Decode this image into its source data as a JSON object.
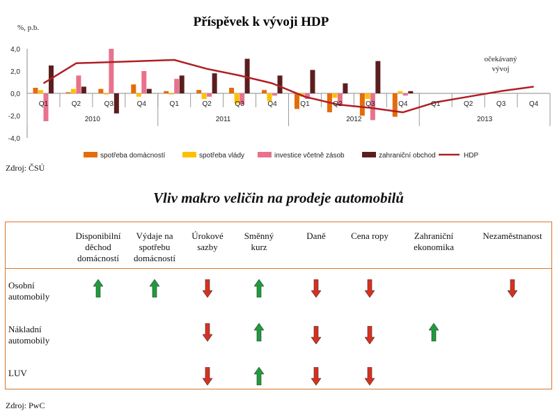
{
  "chart_data": {
    "type": "bar",
    "title": "Příspěvek k vývoji HDP",
    "ylabel": "%, p.b.",
    "ylim": [
      -4,
      4
    ],
    "yticks": [
      "4,0",
      "2,0",
      "0,0",
      "-2,0",
      "-4,0"
    ],
    "categories": [
      "Q1",
      "Q2",
      "Q3",
      "Q4",
      "Q1",
      "Q2",
      "Q3",
      "Q4",
      "Q1",
      "Q2",
      "Q3",
      "Q4",
      "Q1",
      "Q2",
      "Q3",
      "Q4"
    ],
    "years": [
      "2010",
      "2011",
      "2012",
      "2013"
    ],
    "series": [
      {
        "name": "spotřeba domácností",
        "color": "#e46c0a",
        "kind": "bar",
        "values": [
          0.5,
          0.1,
          0.4,
          0.8,
          0.2,
          0.3,
          0.5,
          0.3,
          -1.4,
          -1.7,
          -2.0,
          -2.1,
          null,
          null,
          null,
          null
        ]
      },
      {
        "name": "spotřeba vlády",
        "color": "#ffc000",
        "kind": "bar",
        "values": [
          0.3,
          0.4,
          -0.1,
          -0.3,
          -0.1,
          -0.5,
          -0.9,
          -0.7,
          -0.3,
          -0.4,
          -0.5,
          0.2,
          null,
          null,
          null,
          null
        ]
      },
      {
        "name": "investice včetně zásob",
        "color": "#e8728c",
        "kind": "bar",
        "values": [
          -2.5,
          1.6,
          4.0,
          2.0,
          1.3,
          -0.3,
          -1.0,
          -0.2,
          -0.5,
          -1.0,
          -2.4,
          -0.2,
          null,
          null,
          null,
          null
        ]
      },
      {
        "name": "zahraniční obchod",
        "color": "#5b1e1e",
        "kind": "bar",
        "values": [
          2.5,
          0.6,
          -1.8,
          0.4,
          1.6,
          1.8,
          3.1,
          1.6,
          2.1,
          0.9,
          2.9,
          0.2,
          null,
          null,
          null,
          null
        ]
      },
      {
        "name": "HDP",
        "color": "#b01e24",
        "kind": "line",
        "values": [
          0.9,
          2.7,
          2.8,
          2.9,
          3.0,
          2.2,
          1.6,
          0.9,
          -0.3,
          -1.0,
          -1.3,
          -1.7,
          -0.8,
          -0.3,
          0.2,
          0.6
        ]
      }
    ],
    "annotation": "očekávaný vývoj",
    "legend_position": "bottom",
    "source": "Zdroj: ČSÚ"
  },
  "matrix": {
    "title": "Vliv makro veličin na prodeje automobilů",
    "columns": [
      "Disponibilní\nděchod\ndomácností",
      "Výdaje na\nspotřebu\ndomácností",
      "Úrokové\nsazby",
      "Směnný\nkurz",
      "Daně",
      "Cena ropy",
      "Zahraniční\nekonomika",
      "Nezaměstnanost"
    ],
    "rows": [
      {
        "label": "Osobní\nautomobily",
        "effects": [
          "up",
          "up",
          "down",
          "up",
          "down",
          "down",
          null,
          "down"
        ]
      },
      {
        "label": "Nákladní\nautomobily",
        "effects": [
          null,
          null,
          "down",
          "up",
          "down",
          "down",
          "up",
          null
        ]
      },
      {
        "label": "LUV",
        "effects": [
          null,
          null,
          "down",
          "up",
          "down",
          "down",
          null,
          null
        ]
      }
    ],
    "colors": {
      "up": "#1e9c3c",
      "down": "#d8301f",
      "border": "#d8752b"
    },
    "source": "Zdroj: PwC"
  }
}
